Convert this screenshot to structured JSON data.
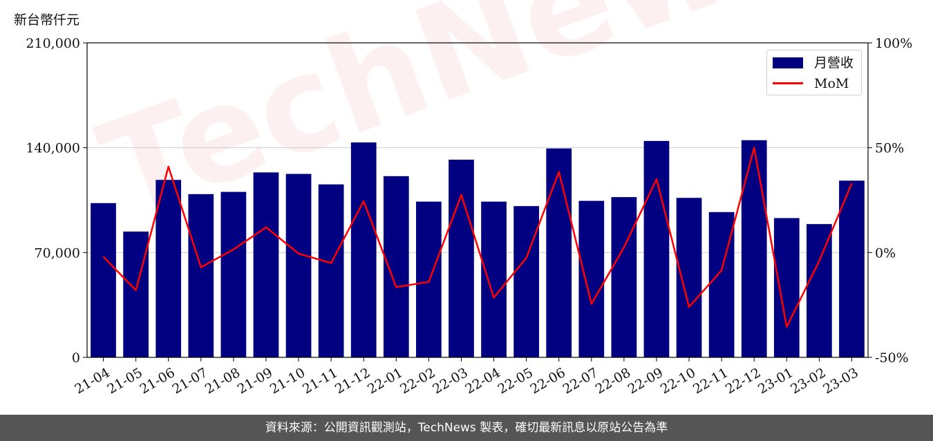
{
  "chart_data": {
    "type": "bar",
    "y_unit_label": "新台幣仟元",
    "categories": [
      "21-04",
      "21-05",
      "21-06",
      "21-07",
      "21-08",
      "21-09",
      "21-10",
      "21-11",
      "21-12",
      "22-01",
      "22-02",
      "22-03",
      "22-04",
      "22-05",
      "22-06",
      "22-07",
      "22-08",
      "22-09",
      "22-10",
      "22-11",
      "22-12",
      "23-01",
      "23-02",
      "23-03"
    ],
    "series": [
      {
        "name": "月營收",
        "type": "bar",
        "axis": "left",
        "color": "#000080",
        "values": [
          103000,
          84000,
          118500,
          109000,
          110500,
          123500,
          122500,
          115500,
          143500,
          121000,
          104000,
          132000,
          104000,
          101000,
          139500,
          104500,
          107000,
          144500,
          106500,
          97000,
          145000,
          93000,
          89000,
          118000
        ]
      },
      {
        "name": "MoM",
        "type": "line",
        "axis": "right",
        "color": "#ff0000",
        "values": [
          -2,
          -18,
          41,
          -7,
          1.5,
          12,
          -0.5,
          -5,
          24.5,
          -16.5,
          -14,
          27.5,
          -21.5,
          -2.5,
          38.5,
          -24.5,
          2.5,
          35,
          -26,
          -8.5,
          50,
          -35.5,
          -4,
          33
        ]
      }
    ],
    "left_axis": {
      "ylim": [
        0,
        210000
      ],
      "ticks": [
        "0",
        "70,000",
        "140,000",
        "210,000"
      ],
      "tick_values": [
        0,
        70000,
        140000,
        210000
      ]
    },
    "right_axis": {
      "ylim": [
        -50,
        100
      ],
      "ticks": [
        "-50%",
        "0%",
        "50%",
        "100%"
      ],
      "tick_values": [
        -50,
        0,
        50,
        100
      ]
    },
    "grid": "horizontal",
    "legend": "top-right"
  },
  "watermark": "TechNews",
  "footer": "資料來源：公開資訊觀測站，TechNews 製表，確切最新訊息以原站公告為準"
}
